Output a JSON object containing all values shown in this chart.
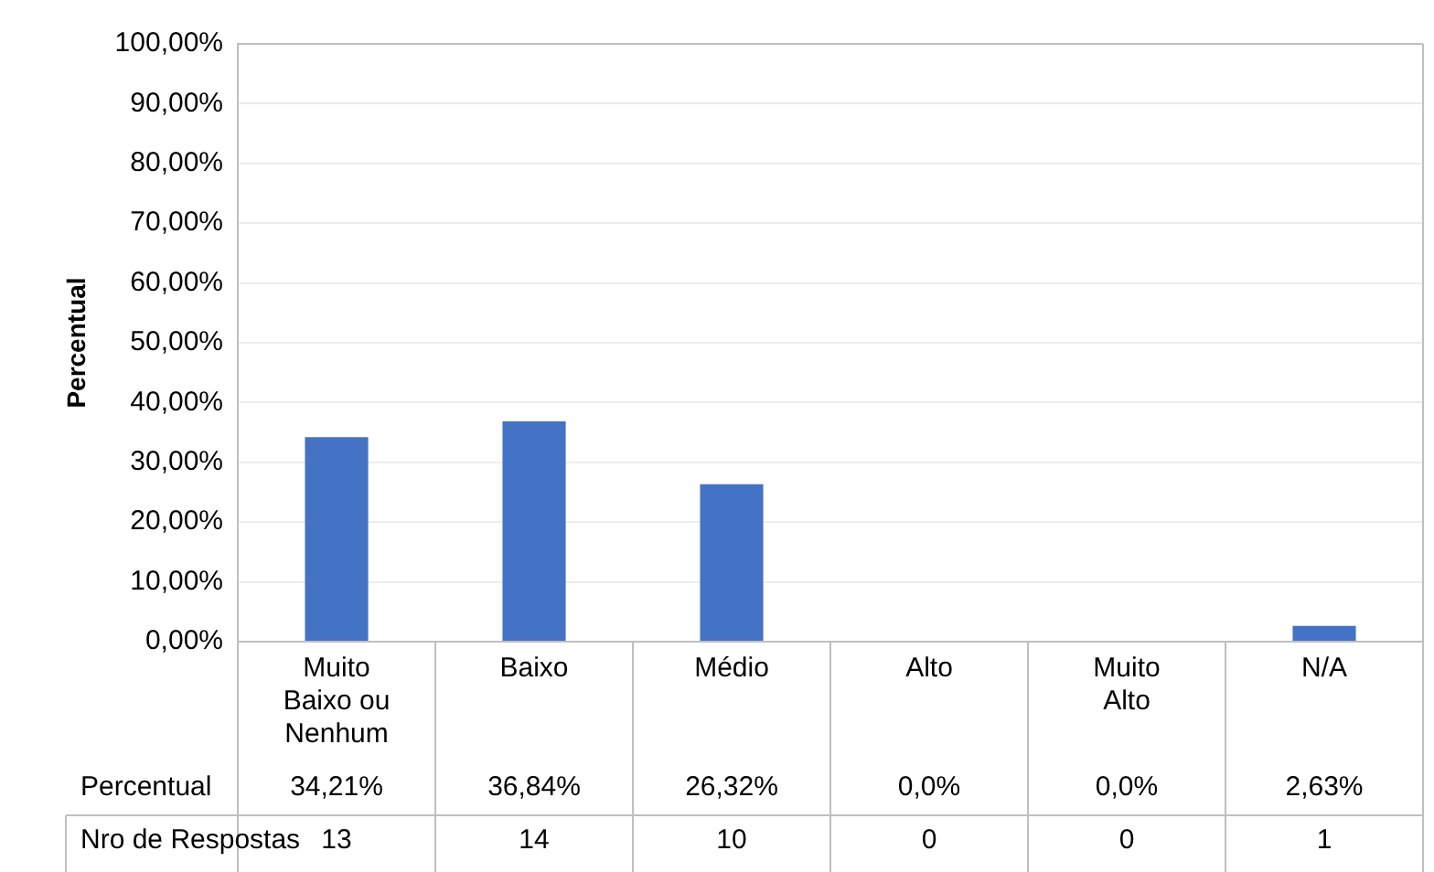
{
  "chart_data": {
    "type": "bar",
    "ylabel": "Percentual",
    "categories": [
      "Muito Baixo ou Nenhum",
      "Baixo",
      "Médio",
      "Alto",
      "Muito Alto",
      "N/A"
    ],
    "series": [
      {
        "name": "Percentual",
        "color": "#4472c4",
        "values": [
          34.21,
          36.84,
          26.32,
          0,
          0,
          2.63
        ],
        "value_labels": [
          "34,21%",
          "36,84%",
          "26,32%",
          "0,0%",
          "0,0%",
          "2,63%"
        ]
      }
    ],
    "ylim": [
      0,
      100
    ],
    "yticks": [
      {
        "value": 0,
        "label": "0,00%"
      },
      {
        "value": 10,
        "label": "10,00%"
      },
      {
        "value": 20,
        "label": "20,00%"
      },
      {
        "value": 30,
        "label": "30,00%"
      },
      {
        "value": 40,
        "label": "40,00%"
      },
      {
        "value": 50,
        "label": "50,00%"
      },
      {
        "value": 60,
        "label": "60,00%"
      },
      {
        "value": 70,
        "label": "70,00%"
      },
      {
        "value": 80,
        "label": "80,00%"
      },
      {
        "value": 90,
        "label": "90,00%"
      },
      {
        "value": 100,
        "label": "100,00%"
      }
    ],
    "grid": "y",
    "legend": false,
    "annotations": [
      "Nro de Respostas",
      "13",
      "14",
      "10",
      "0",
      "0",
      "1"
    ]
  }
}
